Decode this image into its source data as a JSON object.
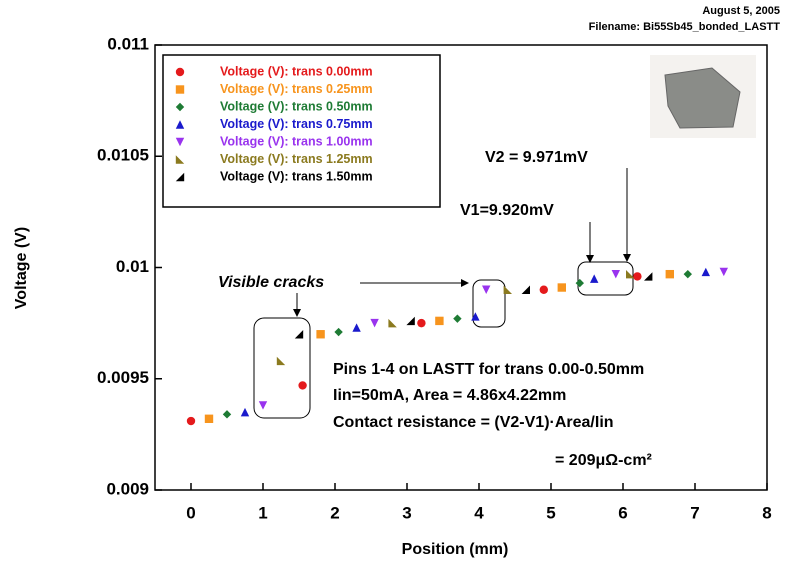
{
  "chart_data": {
    "type": "scatter",
    "header_date": "August 5, 2005",
    "header_file": "Filename: Bi55Sb45_bonded_LASTT",
    "xlabel": "Position (mm)",
    "ylabel": "Voltage (V)",
    "xlim": [
      -0.5,
      8
    ],
    "ylim": [
      0.009,
      0.011
    ],
    "xticks": [
      0,
      1,
      2,
      3,
      4,
      5,
      6,
      7,
      8
    ],
    "yticks": [
      0.009,
      0.0095,
      0.01,
      0.0105,
      0.011
    ],
    "legend": "top-left",
    "series": [
      {
        "name": "Voltage (V): trans 0.00mm",
        "color": "#e41a1c",
        "marker": "circle",
        "x": [
          0,
          1.55,
          3.2,
          4.9,
          6.2
        ],
        "values": [
          0.00931,
          0.00947,
          0.00975,
          0.0099,
          0.00996
        ]
      },
      {
        "name": "Voltage (V): trans 0.25mm",
        "color": "#f7941d",
        "marker": "square",
        "x": [
          0.25,
          1.8,
          3.45,
          5.15,
          6.65
        ],
        "values": [
          0.00932,
          0.0097,
          0.00976,
          0.00991,
          0.00997
        ]
      },
      {
        "name": "Voltage (V): trans 0.50mm",
        "color": "#1e7b34",
        "marker": "diamond",
        "x": [
          0.5,
          2.05,
          3.7,
          5.4,
          6.9
        ],
        "values": [
          0.00934,
          0.00971,
          0.00977,
          0.00993,
          0.00997
        ]
      },
      {
        "name": "Voltage (V): trans 0.75mm",
        "color": "#1a1acc",
        "marker": "triangle-up",
        "x": [
          0.75,
          2.3,
          3.95,
          5.6,
          7.15
        ],
        "values": [
          0.00935,
          0.00973,
          0.00978,
          0.00995,
          0.00998
        ]
      },
      {
        "name": "Voltage (V): trans 1.00mm",
        "color": "#9933ee",
        "marker": "triangle-down",
        "x": [
          1.0,
          2.55,
          4.1,
          5.9,
          7.4
        ],
        "values": [
          0.00938,
          0.00975,
          0.0099,
          0.00997,
          0.00998
        ]
      },
      {
        "name": "Voltage (V): trans 1.25mm",
        "color": "#8b7a1f",
        "marker": "corner-left",
        "x": [
          1.25,
          2.8,
          4.4,
          6.1
        ],
        "values": [
          0.00958,
          0.00975,
          0.0099,
          0.00997
        ]
      },
      {
        "name": "Voltage (V): trans 1.50mm",
        "color": "#000000",
        "marker": "corner-right",
        "x": [
          1.5,
          3.05,
          4.65,
          6.35
        ],
        "values": [
          0.0097,
          0.00976,
          0.0099,
          0.00996
        ]
      }
    ],
    "annotations": [
      "Visible cracks",
      "V1=9.920mV",
      "V2 = 9.971mV",
      "Pins 1-4 on LASTT for trans 0.00-0.50mm",
      "Iin=50mA, Area = 4.86x4.22mm",
      "Contact resistance = (V2-V1)·Area/Iin",
      "= 209μΩ-cm²"
    ]
  }
}
